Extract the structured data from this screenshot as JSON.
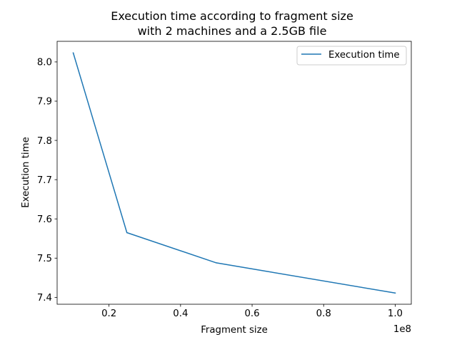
{
  "chart_data": {
    "type": "line",
    "title_line1": "Execution time according to fragment size",
    "title_line2": "with 2 machines and a 2.5GB file",
    "xlabel": "Fragment size",
    "ylabel": "Execution time",
    "x_offset_label": "1e8",
    "x_scale": 100000000,
    "xlim": [
      5500000,
      104500000
    ],
    "ylim": [
      7.3825,
      8.0525
    ],
    "x_ticks": [
      {
        "value": 20000000,
        "label": "0.2"
      },
      {
        "value": 40000000,
        "label": "0.4"
      },
      {
        "value": 60000000,
        "label": "0.6"
      },
      {
        "value": 80000000,
        "label": "0.8"
      },
      {
        "value": 100000000,
        "label": "1.0"
      }
    ],
    "y_ticks": [
      {
        "value": 7.4,
        "label": "7.4"
      },
      {
        "value": 7.5,
        "label": "7.5"
      },
      {
        "value": 7.6,
        "label": "7.6"
      },
      {
        "value": 7.7,
        "label": "7.7"
      },
      {
        "value": 7.8,
        "label": "7.8"
      },
      {
        "value": 7.9,
        "label": "7.9"
      },
      {
        "value": 8.0,
        "label": "8.0"
      }
    ],
    "grid": false,
    "legend_position": "upper right",
    "series": [
      {
        "name": "Execution time",
        "color": "#1f77b4",
        "x": [
          10000000,
          25000000,
          50000000,
          100000000
        ],
        "y": [
          8.023,
          7.565,
          7.488,
          7.411
        ]
      }
    ]
  }
}
